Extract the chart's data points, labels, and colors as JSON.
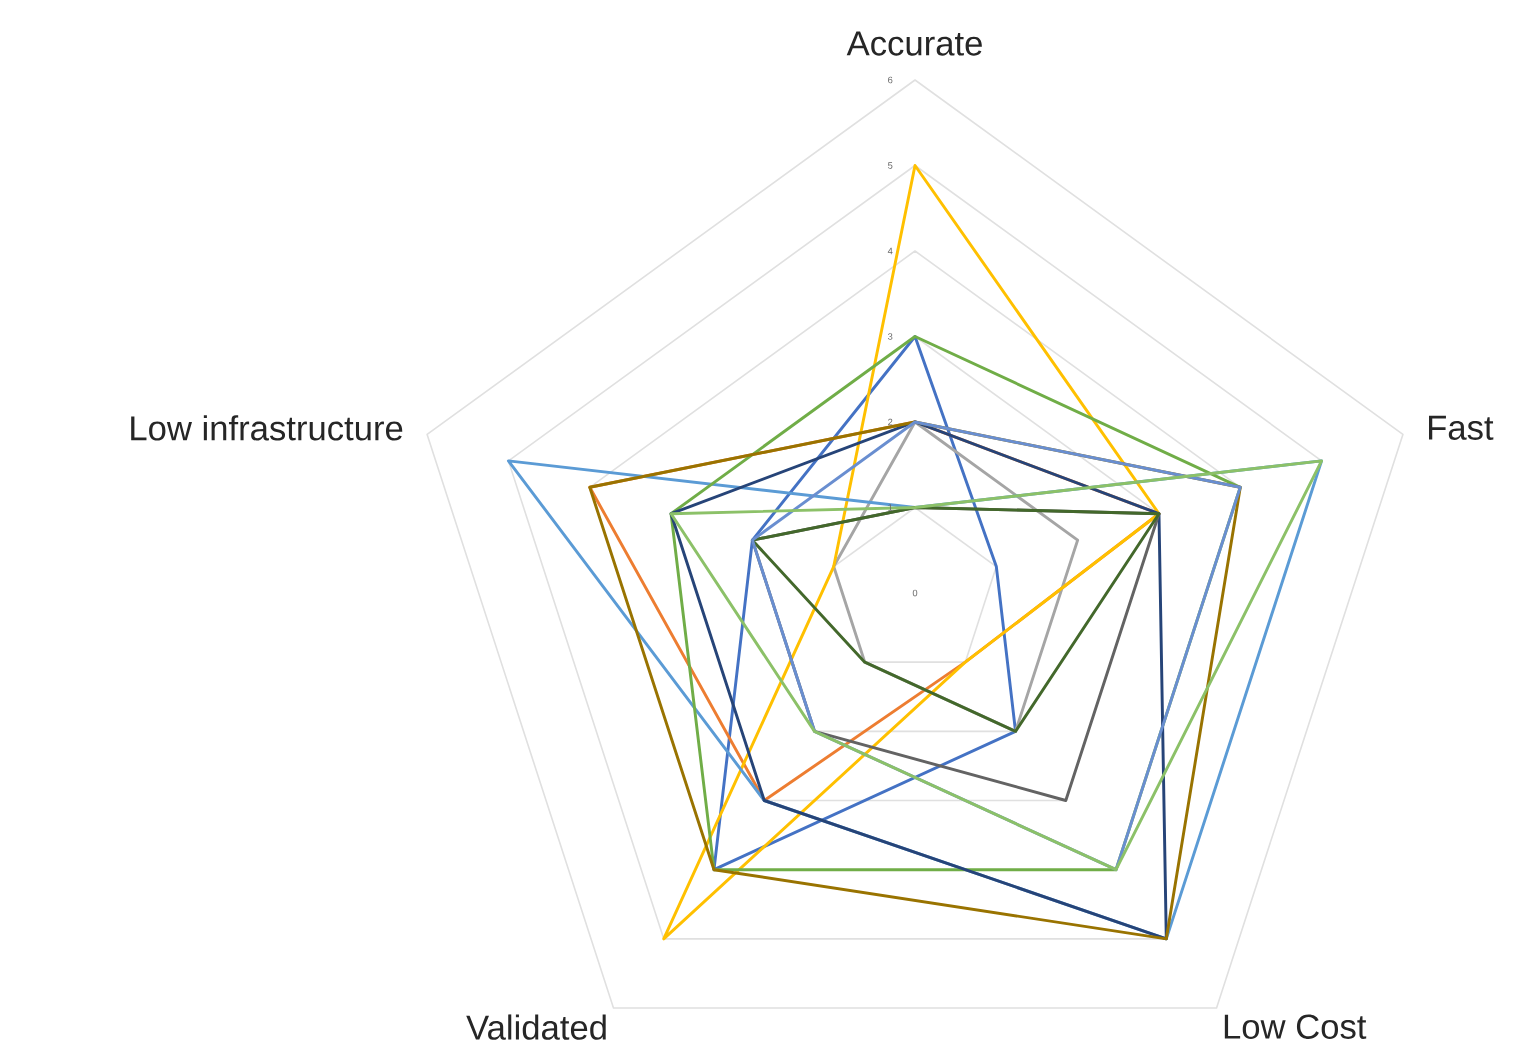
{
  "chart_data": {
    "type": "radar",
    "categories": [
      "Accurate",
      "Fast",
      "Low Cost",
      "Validated",
      "Low infrastructure"
    ],
    "ylim": [
      0,
      6
    ],
    "yticks": [
      0,
      1,
      2,
      3,
      4,
      5,
      6
    ],
    "grid": true,
    "series": [
      {
        "color": "#4472c4",
        "values": [
          3,
          1,
          2,
          4,
          2
        ]
      },
      {
        "color": "#ed7d31",
        "values": [
          2,
          3,
          1,
          3,
          4
        ]
      },
      {
        "color": "#a5a5a5",
        "values": [
          2,
          2,
          2,
          1,
          1
        ]
      },
      {
        "color": "#ffc000",
        "values": [
          5,
          3,
          1,
          5,
          1
        ]
      },
      {
        "color": "#5b9bd5",
        "values": [
          1,
          5,
          5,
          3,
          5
        ]
      },
      {
        "color": "#70ad47",
        "values": [
          3,
          4,
          4,
          4,
          3
        ]
      },
      {
        "color": "#264478",
        "values": [
          2,
          3,
          5,
          3,
          3
        ]
      },
      {
        "color": "#997300",
        "values": [
          2,
          4,
          5,
          4,
          4
        ]
      },
      {
        "color": "#636363",
        "values": [
          1,
          3,
          3,
          2,
          2
        ]
      },
      {
        "color": "#43682b",
        "values": [
          1,
          3,
          2,
          1,
          2
        ]
      },
      {
        "color": "#698ed0",
        "values": [
          2,
          4,
          4,
          2,
          2
        ]
      },
      {
        "color": "#8cc168",
        "values": [
          1,
          5,
          4,
          2,
          3
        ]
      }
    ]
  }
}
